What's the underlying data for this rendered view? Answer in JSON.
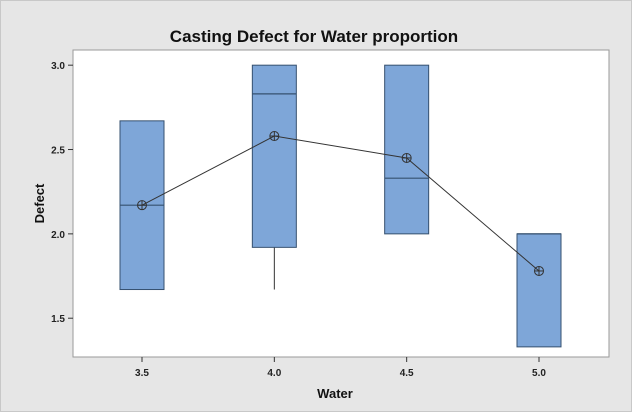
{
  "colors": {
    "outer_background": "#e6e6e6",
    "plot_background": "#ffffff",
    "box_fill": "#7ea6d8",
    "box_stroke": "#35506f",
    "line": "#333333"
  },
  "chart_data": {
    "type": "boxplot",
    "title": "Casting  Defect for Water proportion",
    "xlabel": "Water",
    "ylabel": "Defect",
    "categories": [
      "3.5",
      "4.0",
      "4.5",
      "5.0"
    ],
    "x_ticks": [
      "3.5",
      "4.0",
      "4.5",
      "5.0"
    ],
    "y_ticks": [
      "1.5",
      "2.0",
      "2.5",
      "3.0"
    ],
    "ylim": [
      1.27,
      3.09
    ],
    "grid": false,
    "legend": "none",
    "boxes": [
      {
        "category": "3.5",
        "min": 1.67,
        "q1": 1.67,
        "median": 2.17,
        "q3": 2.67,
        "max": 2.67,
        "mean": 2.17
      },
      {
        "category": "4.0",
        "min": 1.67,
        "q1": 1.92,
        "median": 2.83,
        "q3": 3.0,
        "max": 3.0,
        "mean": 2.58
      },
      {
        "category": "4.5",
        "min": 2.0,
        "q1": 2.0,
        "median": 2.33,
        "q3": 3.0,
        "max": 3.0,
        "mean": 2.45
      },
      {
        "category": "5.0",
        "min": 1.33,
        "q1": 1.33,
        "median": 2.0,
        "q3": 2.0,
        "max": 2.0,
        "mean": 1.78
      }
    ],
    "mean_line": true
  }
}
